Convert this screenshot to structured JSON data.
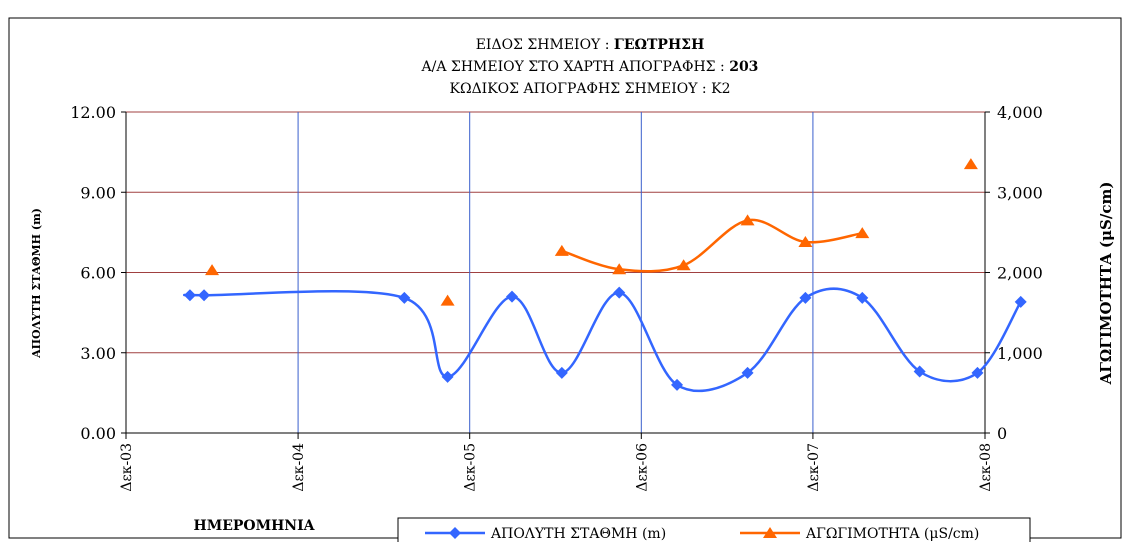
{
  "chart_data": {
    "type": "line",
    "title_lines": [
      {
        "label": "ΕΙΔΟΣ ΣΗΜΕΙΟΥ : ",
        "value": "ΓΕΩΤΡΗΣΗ"
      },
      {
        "label": "Α/Α ΣΗΜΕΙΟΥ ΣΤΟ ΧΑΡΤΗ ΑΠΟΓΡΑΦΗΣ : ",
        "value": "203"
      },
      {
        "label": "ΚΩΔΙΚΟΣ ΑΠΟΓΡΑΦΗΣ ΣΗΜΕΙΟΥ : ",
        "value": "Κ2"
      }
    ],
    "xlabel": "ΗΜΕΡΟΜΗΝΙΑ",
    "ylabel_left": "ΑΠΟΛΥΤΗ ΣΤΑΘΜΗ (m)",
    "ylabel_right": "ΑΓΩΓΙΜΟΤΗΤΑ (μS/cm)",
    "x_range": [
      "2003-12",
      "2008-12"
    ],
    "x_ticks": [
      {
        "date": "2003-12",
        "label": "Δεκ-03"
      },
      {
        "date": "2004-12",
        "label": "Δεκ-04"
      },
      {
        "date": "2005-12",
        "label": "Δεκ-05"
      },
      {
        "date": "2006-12",
        "label": "Δεκ-06"
      },
      {
        "date": "2007-12",
        "label": "Δεκ-07"
      },
      {
        "date": "2008-12",
        "label": "Δεκ-08"
      }
    ],
    "ylim_left": [
      0,
      12
    ],
    "yticks_left": [
      {
        "value": 0,
        "label": "0.00"
      },
      {
        "value": 3,
        "label": "3.00"
      },
      {
        "value": 6,
        "label": "6.00"
      },
      {
        "value": 9,
        "label": "9.00"
      },
      {
        "value": 12,
        "label": "12.00"
      }
    ],
    "ylim_right": [
      0,
      4000
    ],
    "yticks_right": [
      {
        "value": 0,
        "label": "0"
      },
      {
        "value": 1000,
        "label": "1,000"
      },
      {
        "value": 2000,
        "label": "2,000"
      },
      {
        "value": 3000,
        "label": "3,000"
      },
      {
        "value": 4000,
        "label": "4,000"
      }
    ],
    "grid": {
      "horizontal": true,
      "vertical": true
    },
    "colors": {
      "series_level": "#3366ff",
      "series_conductivity": "#ff6600",
      "grid_horizontal": "#a04040",
      "grid_vertical": "#3a5fcd"
    },
    "series": [
      {
        "name": "ΑΠΟΛΥΤΗ ΣΤΑΘΜΗ (m)",
        "axis": "left",
        "marker": "diamond",
        "smooth": true,
        "points": [
          {
            "date": "2004-04-15",
            "value": 5.15
          },
          {
            "date": "2004-05-15",
            "value": 5.15
          },
          {
            "date": "2005-07-15",
            "value": 5.05
          },
          {
            "date": "2005-10-15",
            "value": 2.1
          },
          {
            "date": "2006-03-01",
            "value": 5.1
          },
          {
            "date": "2006-06-15",
            "value": 2.25
          },
          {
            "date": "2006-10-15",
            "value": 5.25
          },
          {
            "date": "2007-02-15",
            "value": 1.8
          },
          {
            "date": "2007-07-15",
            "value": 2.25
          },
          {
            "date": "2007-11-15",
            "value": 5.05
          },
          {
            "date": "2008-03-15",
            "value": 5.05
          },
          {
            "date": "2008-07-15",
            "value": 2.3
          },
          {
            "date": "2008-11-15",
            "value": 2.25
          },
          {
            "date": "2009-02-15",
            "value": 4.9
          }
        ]
      },
      {
        "name": "ΑΓΩΓΙΜΟΤΗΤΑ (μS/cm)",
        "axis": "right",
        "marker": "triangle",
        "smooth": true,
        "points": [
          {
            "date": "2004-06-01",
            "value": 2030,
            "connect_next": false
          },
          {
            "date": "2005-10-15",
            "value": 1650,
            "connect_next": false
          },
          {
            "date": "2006-06-15",
            "value": 2270
          },
          {
            "date": "2006-10-15",
            "value": 2040
          },
          {
            "date": "2007-03-01",
            "value": 2090
          },
          {
            "date": "2007-07-15",
            "value": 2650
          },
          {
            "date": "2007-11-15",
            "value": 2380
          },
          {
            "date": "2008-03-15",
            "value": 2490,
            "connect_next": false
          },
          {
            "date": "2008-11-01",
            "value": 3350,
            "connect_next": false
          }
        ]
      }
    ]
  }
}
